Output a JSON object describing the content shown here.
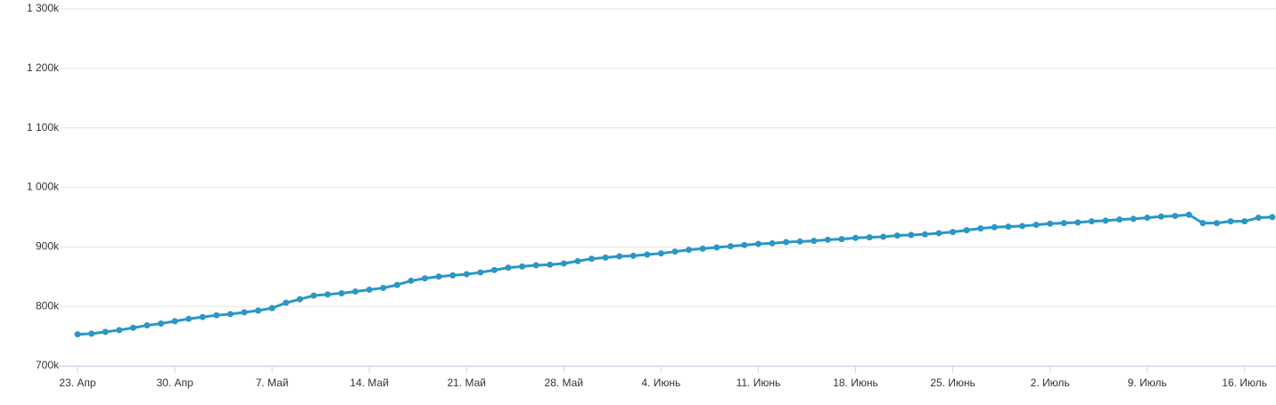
{
  "chart_data": {
    "type": "line",
    "categories": [
      "23. Апр",
      null,
      null,
      null,
      null,
      null,
      null,
      "30. Апр",
      null,
      null,
      null,
      null,
      null,
      null,
      "7. Май",
      null,
      null,
      null,
      null,
      null,
      null,
      "14. Май",
      null,
      null,
      null,
      null,
      null,
      null,
      "21. Май",
      null,
      null,
      null,
      null,
      null,
      null,
      "28. Май",
      null,
      null,
      null,
      null,
      null,
      null,
      "4. Июнь",
      null,
      null,
      null,
      null,
      null,
      null,
      "11. Июнь",
      null,
      null,
      null,
      null,
      null,
      null,
      "18. Июнь",
      null,
      null,
      null,
      null,
      null,
      null,
      "25. Июнь",
      null,
      null,
      null,
      null,
      null,
      null,
      "2. Июль",
      null,
      null,
      null,
      null,
      null,
      null,
      "9. Июль",
      null,
      null,
      null,
      null,
      null,
      null,
      "16. Июль",
      null,
      null
    ],
    "values": [
      753,
      754,
      757,
      760,
      764,
      768,
      771,
      775,
      779,
      782,
      785,
      787,
      790,
      793,
      797,
      806,
      812,
      818,
      820,
      822,
      825,
      828,
      831,
      836,
      843,
      847,
      850,
      852,
      854,
      857,
      861,
      865,
      867,
      869,
      870,
      872,
      876,
      880,
      882,
      884,
      885,
      887,
      889,
      892,
      895,
      897,
      899,
      901,
      903,
      905,
      906,
      908,
      909,
      910,
      912,
      913,
      915,
      916,
      917,
      919,
      920,
      921,
      923,
      925,
      928,
      931,
      933,
      934,
      935,
      937,
      939,
      940,
      941,
      943,
      944,
      946,
      947,
      949,
      951,
      952,
      954,
      940,
      940,
      943,
      943,
      949,
      950
    ],
    "color": "#2a97c5",
    "ylim": [
      700,
      1300
    ],
    "yticks": [
      {
        "value": 700,
        "label": "700k"
      },
      {
        "value": 800,
        "label": "800k"
      },
      {
        "value": 900,
        "label": "900k"
      },
      {
        "value": 1000,
        "label": "1 000k"
      },
      {
        "value": 1100,
        "label": "1 100k"
      },
      {
        "value": 1200,
        "label": "1 200k"
      },
      {
        "value": 1300,
        "label": "1 300k"
      }
    ],
    "grid": true
  }
}
